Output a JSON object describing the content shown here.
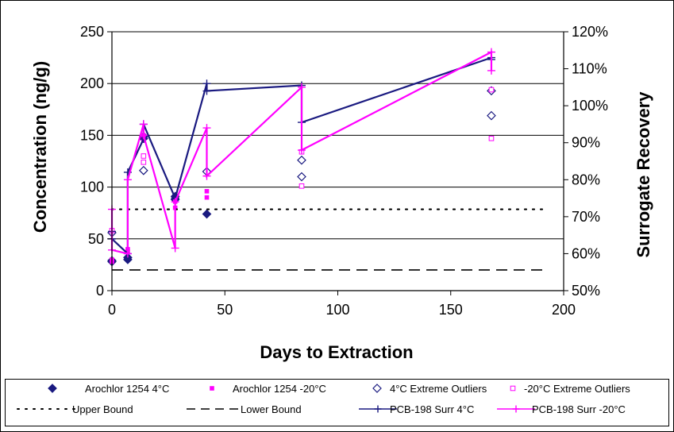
{
  "chart_data": {
    "type": "scatter",
    "title": "",
    "xlabel": "Days to Extraction",
    "ylabel": "Concentration (ng/g)",
    "y2label": "Surrogate Recovery",
    "xlim": [
      0,
      200
    ],
    "ylim": [
      0,
      250
    ],
    "y2lim": [
      50,
      120
    ],
    "xticks": [
      "0",
      "50",
      "100",
      "150",
      "200"
    ],
    "yticks": [
      "0",
      "50",
      "100",
      "150",
      "200",
      "250"
    ],
    "y2ticks": [
      "50%",
      "60%",
      "70%",
      "80%",
      "90%",
      "100%",
      "110%",
      "120%"
    ],
    "grid": "horizontal",
    "legend_position": "bottom",
    "colors": {
      "navy": "#1a1a80",
      "magenta": "#ff00ff",
      "black": "#000000"
    },
    "series": [
      {
        "name": "Arochlor 1254 4°C",
        "axis": "left",
        "style": "diamond-filled",
        "color": "#1a1a80",
        "points": [
          [
            0,
            28
          ],
          [
            0,
            29
          ],
          [
            7,
            30
          ],
          [
            7,
            32
          ],
          [
            14,
            147
          ],
          [
            14,
            149
          ],
          [
            28,
            88
          ],
          [
            28,
            91
          ],
          [
            42,
            74
          ]
        ]
      },
      {
        "name": "Arochlor 1254 -20°C",
        "axis": "left",
        "style": "square-filled",
        "color": "#ff00ff",
        "points": [
          [
            0,
            28
          ],
          [
            0,
            30
          ],
          [
            7,
            38
          ],
          [
            7,
            40
          ],
          [
            14,
            145
          ],
          [
            14,
            150
          ],
          [
            28,
            80
          ],
          [
            28,
            86
          ],
          [
            42,
            90
          ],
          [
            42,
            96
          ]
        ]
      },
      {
        "name": "4°C Extreme Outliers",
        "axis": "left",
        "style": "diamond-open",
        "color": "#1a1a80",
        "points": [
          [
            0,
            56
          ],
          [
            14,
            116
          ],
          [
            42,
            115
          ],
          [
            84,
            126
          ],
          [
            84,
            110
          ],
          [
            168,
            193
          ],
          [
            168,
            169
          ]
        ]
      },
      {
        "name": "-20°C Extreme Outliers",
        "axis": "left",
        "style": "square-open",
        "color": "#ff00ff",
        "points": [
          [
            0,
            58
          ],
          [
            14,
            130
          ],
          [
            14,
            124
          ],
          [
            84,
            134
          ],
          [
            84,
            101
          ],
          [
            168,
            194
          ],
          [
            168,
            147
          ]
        ]
      },
      {
        "name": "Upper Bound",
        "axis": "right",
        "style": "dotted",
        "color": "#000000",
        "points": [
          [
            0,
            72
          ],
          [
            192,
            72
          ]
        ]
      },
      {
        "name": "Lower Bound",
        "axis": "right",
        "style": "dashed",
        "color": "#000000",
        "points": [
          [
            0,
            55.6
          ],
          [
            192,
            55.6
          ]
        ]
      },
      {
        "name": "PCB-198 Surr 4°C",
        "axis": "right",
        "style": "line-plus",
        "color": "#1a1a80",
        "points": [
          [
            0,
            64
          ],
          [
            0,
            66
          ],
          [
            0,
            64
          ],
          [
            7,
            60
          ],
          [
            7,
            82
          ],
          [
            14,
            91
          ],
          [
            14,
            95
          ],
          [
            28,
            75
          ],
          [
            28,
            75
          ],
          [
            42,
            106
          ],
          [
            42,
            104
          ],
          [
            84,
            105.5
          ],
          [
            84,
            95.5
          ],
          [
            168,
            113
          ],
          [
            168,
            112.5
          ]
        ]
      },
      {
        "name": "PCB-198 Surr -20°C",
        "axis": "right",
        "style": "line-plus",
        "color": "#ff00ff",
        "points": [
          [
            0,
            72
          ],
          [
            0,
            61
          ],
          [
            7,
            60
          ],
          [
            7,
            80
          ],
          [
            14,
            95
          ],
          [
            14,
            92
          ],
          [
            28,
            61.5
          ],
          [
            28,
            74
          ],
          [
            42,
            94
          ],
          [
            42,
            81
          ],
          [
            84,
            105
          ],
          [
            84,
            88
          ],
          [
            168,
            114.5
          ],
          [
            168,
            109.5
          ]
        ]
      }
    ]
  }
}
